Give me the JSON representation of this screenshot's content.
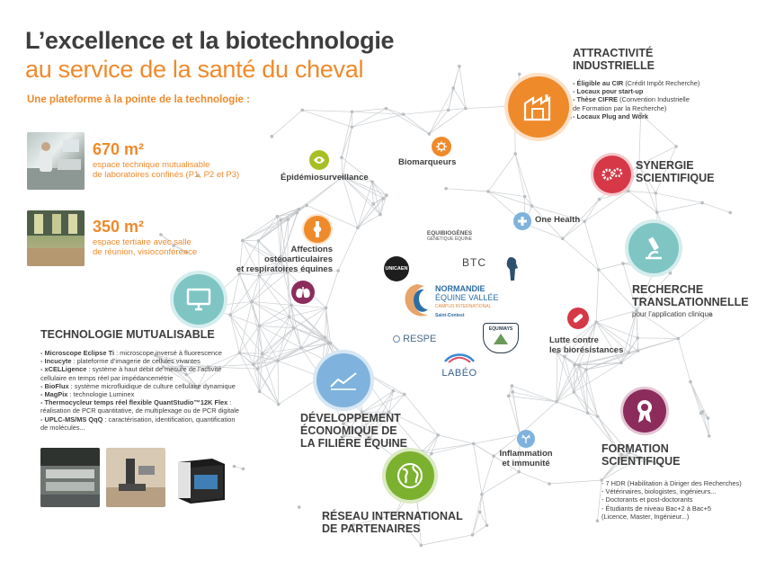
{
  "title": {
    "line1": "L’excellence et la biotechnologie",
    "line2": "au service de la santé du cheval"
  },
  "subtitle": "Une plateforme à la pointe de la technologie :",
  "stats": [
    {
      "value": "670 m²",
      "desc_line1": "espace technique mutualisable",
      "desc_line2": "de laboratoires confinés (P1, P2 et P3)"
    },
    {
      "value": "350 m²",
      "desc_line1": "espace tertiaire avec salle",
      "desc_line2": "de réunion, visioconférence"
    }
  ],
  "topics": {
    "epidemio": "Épidémiosurveillance",
    "biomarqueurs": "Biomarqueurs",
    "one_health": "One Health",
    "affections_l1": "Affections",
    "affections_l2": "ostéoarticulaires",
    "affections_l3": "et respiratoires équines",
    "lutte_l1": "Lutte contre",
    "lutte_l2": "les biorésistances",
    "inflammation_l1": "Inflammation",
    "inflammation_l2": "et immunité"
  },
  "attractivite": {
    "h1": "ATTRACTIVITÉ",
    "h2": "INDUSTRIELLE",
    "items": [
      {
        "b": "- Éligible au CIR",
        "t": " (Crédit Impôt Recherche)"
      },
      {
        "b": "- Locaux pour start-up",
        "t": ""
      },
      {
        "b": "- Thèse CIFRE",
        "t": " (Convention Industrielle"
      },
      {
        "b": "",
        "t": "de Formation par la Recherche)"
      },
      {
        "b": "- Locaux Plug and Work",
        "t": ""
      }
    ]
  },
  "synergie": {
    "h1": "SYNERGIE",
    "h2": "SCIENTIFIQUE"
  },
  "recherche": {
    "h1": "RECHERCHE",
    "h2": "TRANSLATIONNELLE",
    "sub": "pour l’application clinique"
  },
  "formation": {
    "h1": "FORMATION",
    "h2": "SCIENTIFIQUE",
    "items": [
      "- 7 HDR (Habilitation à Diriger des Recherches)",
      "- Vétérinaires, biologistes, ingénieurs...",
      "- Doctorants et post-doctorants",
      "- Étudiants de niveau Bac+2 à Bac+5",
      "(Licence, Master, Ingénieur...)"
    ]
  },
  "technologie": {
    "heading": "TECHNOLOGIE MUTUALISABLE",
    "items": [
      {
        "b": "- Microscope Eclipse Ti",
        "t": " : microscope inversé à fluorescence"
      },
      {
        "b": "- Incucyte",
        "t": " : plateforme d’imagerie de cellules vivantes"
      },
      {
        "b": "- xCELLigence",
        "t": " : système à haut débit de mesure de l’activité"
      },
      {
        "b": "",
        "t": "cellulaire en temps réel par impédancemétrie"
      },
      {
        "b": "- BioFlux",
        "t": " : système microfluidique de culture cellulaire dynamique"
      },
      {
        "b": "- MagPix",
        "t": " : technologie Luminex"
      },
      {
        "b": "- Thermocycleur temps réel flexible QuantStudio™12K Flex",
        "t": " :"
      },
      {
        "b": "",
        "t": "réalisation de PCR quantitative, de multiplexage ou de PCR digitale"
      },
      {
        "b": "- UPLC-MS/MS QqQ",
        "t": " : caractérisation, identification, quantification"
      },
      {
        "b": "",
        "t": "de molécules..."
      }
    ]
  },
  "developpement": {
    "l1": "DÉVELOPPEMENT",
    "l2": "ÉCONOMIQUE DE",
    "l3": "LA FILIÈRE ÉQUINE"
  },
  "reseau": {
    "l1": "RÉSEAU INTERNATIONAL",
    "l2": "DE PARTENAIRES"
  },
  "logos": {
    "equibiogenes": "EQUIBIOGÈNES",
    "equibiogenes_sub": "GÉNÉTIQUE ÉQUINE",
    "unicaen": "UNICAEN",
    "btc": "BTC",
    "nev_l1": "NORMANDIE",
    "nev_l2": "ÉQUINE VALLÉE",
    "nev_l3": "CAMPUS INTERNATIONAL",
    "nev_l4": "Saint-Contest",
    "respe": "RESPE",
    "equiways": "EQUIWAYS",
    "labeo": "LABÉO"
  },
  "colors": {
    "orange": "#ef8a2b",
    "red": "#d63847",
    "teal": "#7ec5c4",
    "blue": "#7fb3dd",
    "green": "#7bb12e",
    "plum": "#8c2c5c",
    "yellow": "#a8bf24",
    "text": "#3d3d3d"
  }
}
